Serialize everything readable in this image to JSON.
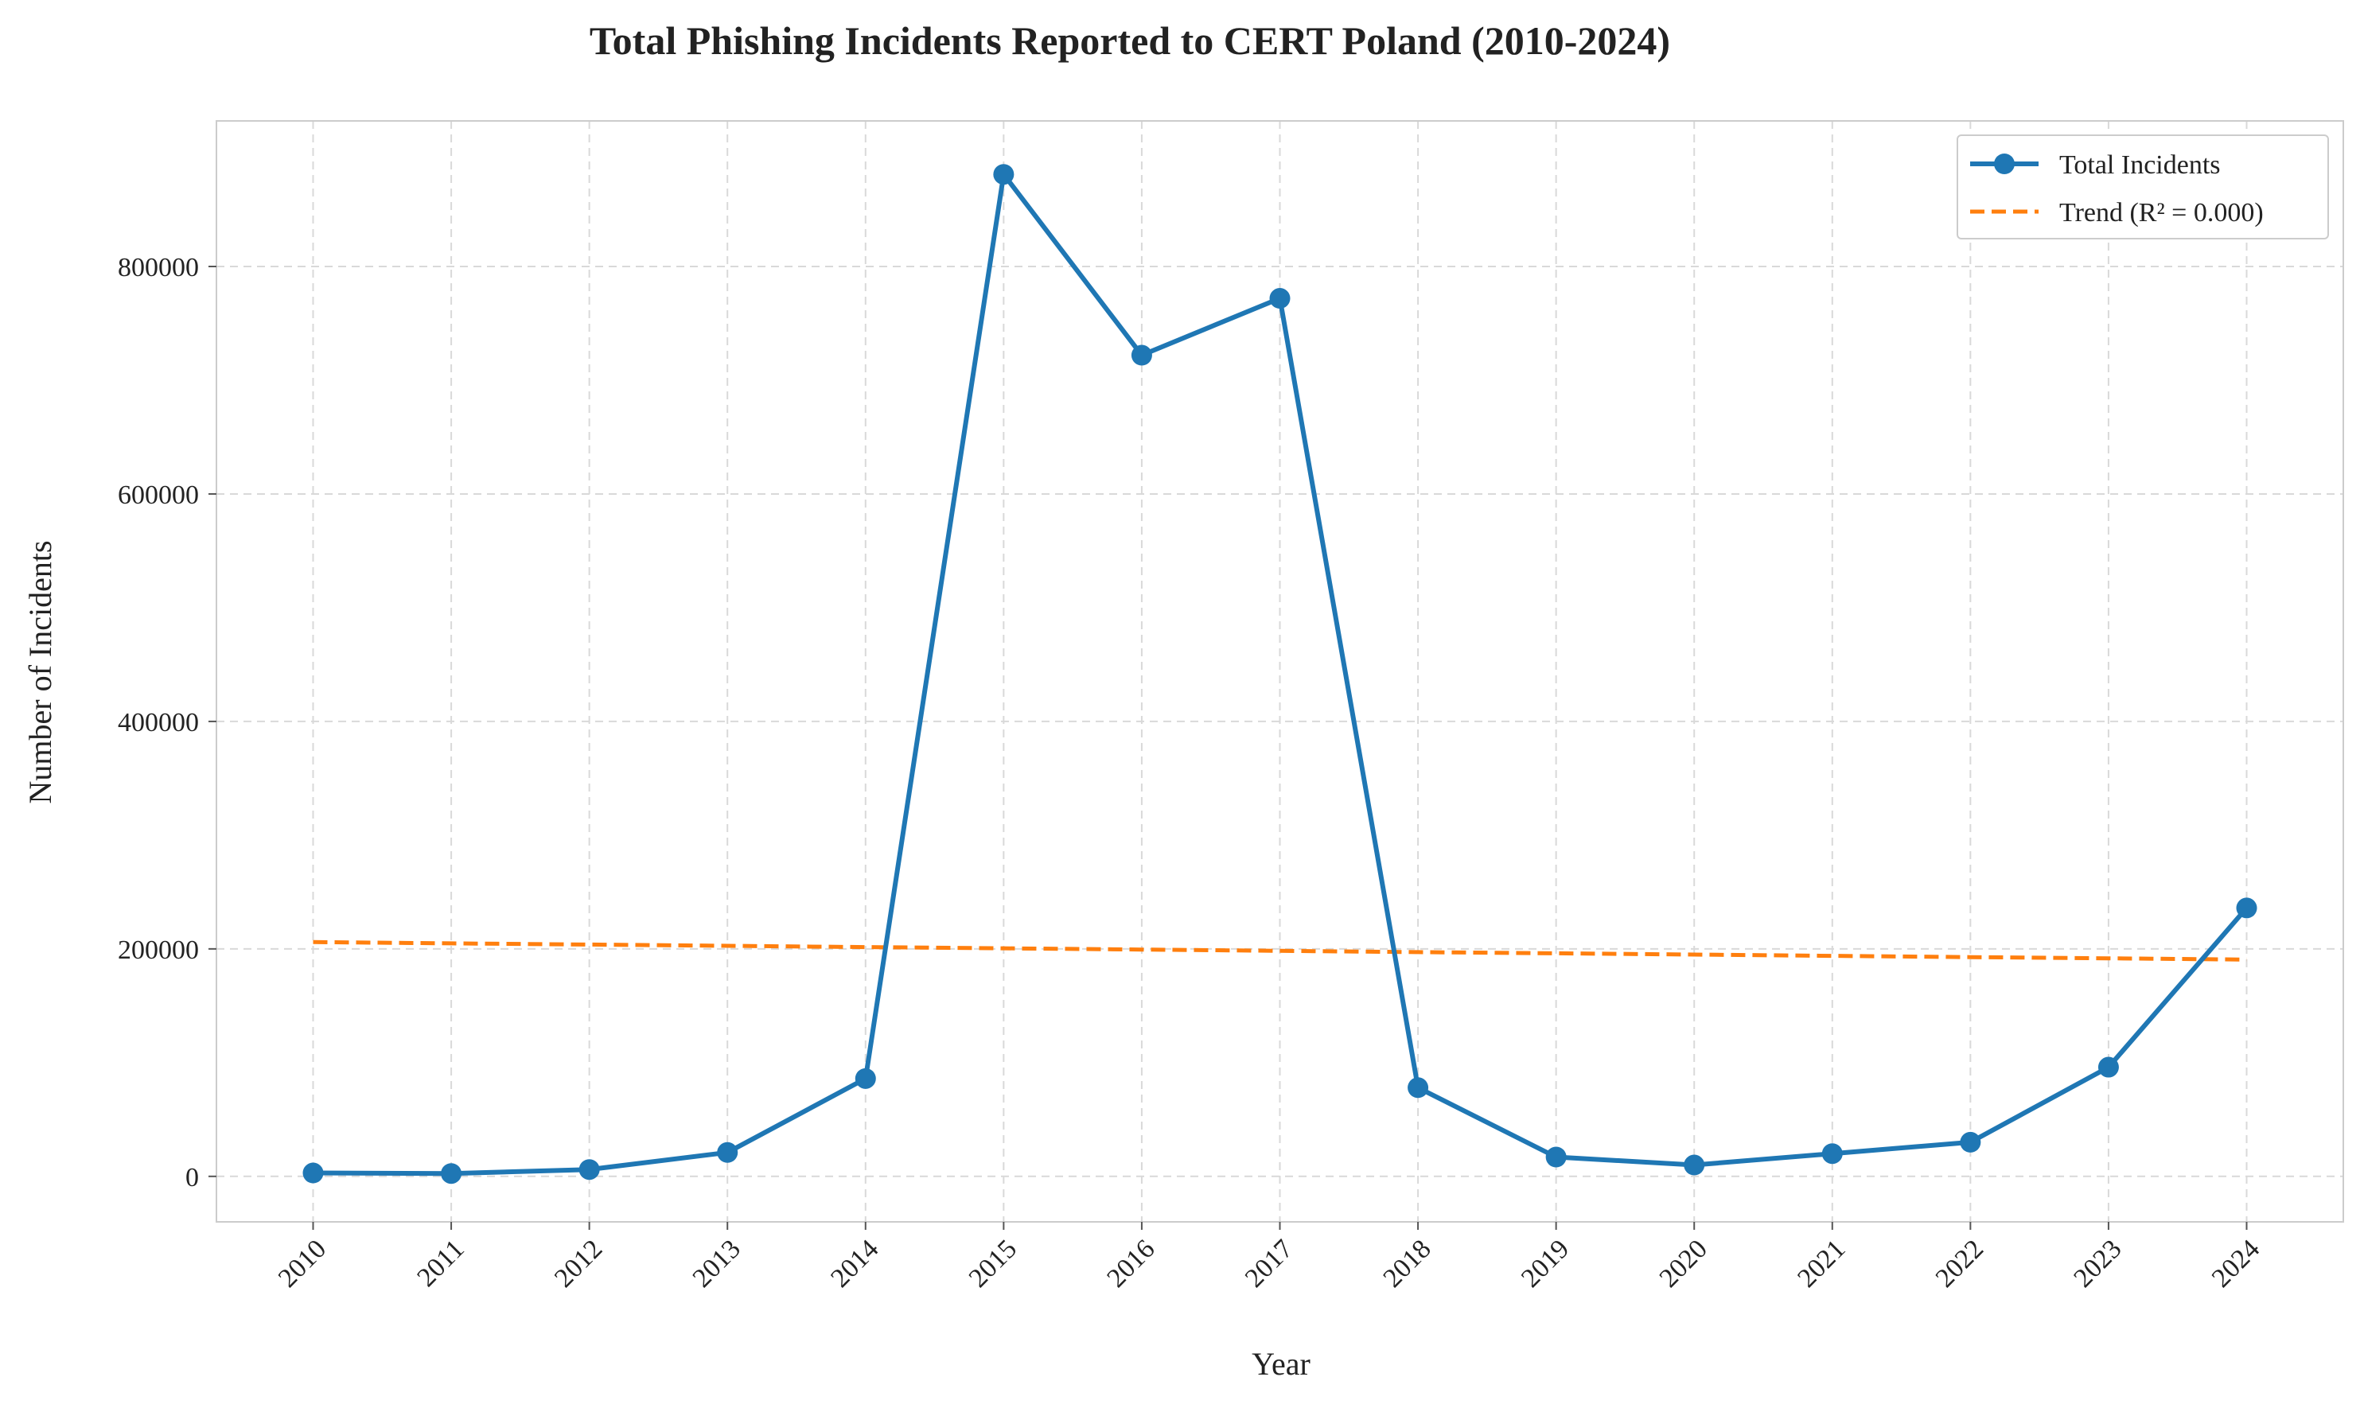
{
  "chart_data": {
    "type": "line",
    "title": "Total Phishing Incidents Reported to CERT Poland (2010-2024)",
    "xlabel": "Year",
    "ylabel": "Number of Incidents",
    "x": [
      "2010",
      "2011",
      "2012",
      "2013",
      "2014",
      "2015",
      "2016",
      "2017",
      "2018",
      "2019",
      "2020",
      "2021",
      "2022",
      "2023",
      "2024"
    ],
    "yticks": [
      "0",
      "200000",
      "400000",
      "600000",
      "800000"
    ],
    "ylim": [
      -40000,
      928000
    ],
    "grid": true,
    "legend_position": "top-right",
    "series": [
      {
        "name": "Total Incidents",
        "style": "solid-line-with-circle-markers",
        "color": "#1f77b4",
        "values": [
          3000,
          2500,
          6000,
          21000,
          86000,
          881000,
          722000,
          772000,
          78000,
          17000,
          10000,
          20000,
          30000,
          96000,
          236000
        ]
      },
      {
        "name": "Trend (R² = 0.000)",
        "style": "dashed-line",
        "color": "#ff7f0e",
        "values": [
          206000,
          204900,
          203800,
          202700,
          201600,
          200500,
          199400,
          198300,
          197200,
          196100,
          195000,
          193900,
          192800,
          191700,
          190600
        ]
      }
    ]
  }
}
